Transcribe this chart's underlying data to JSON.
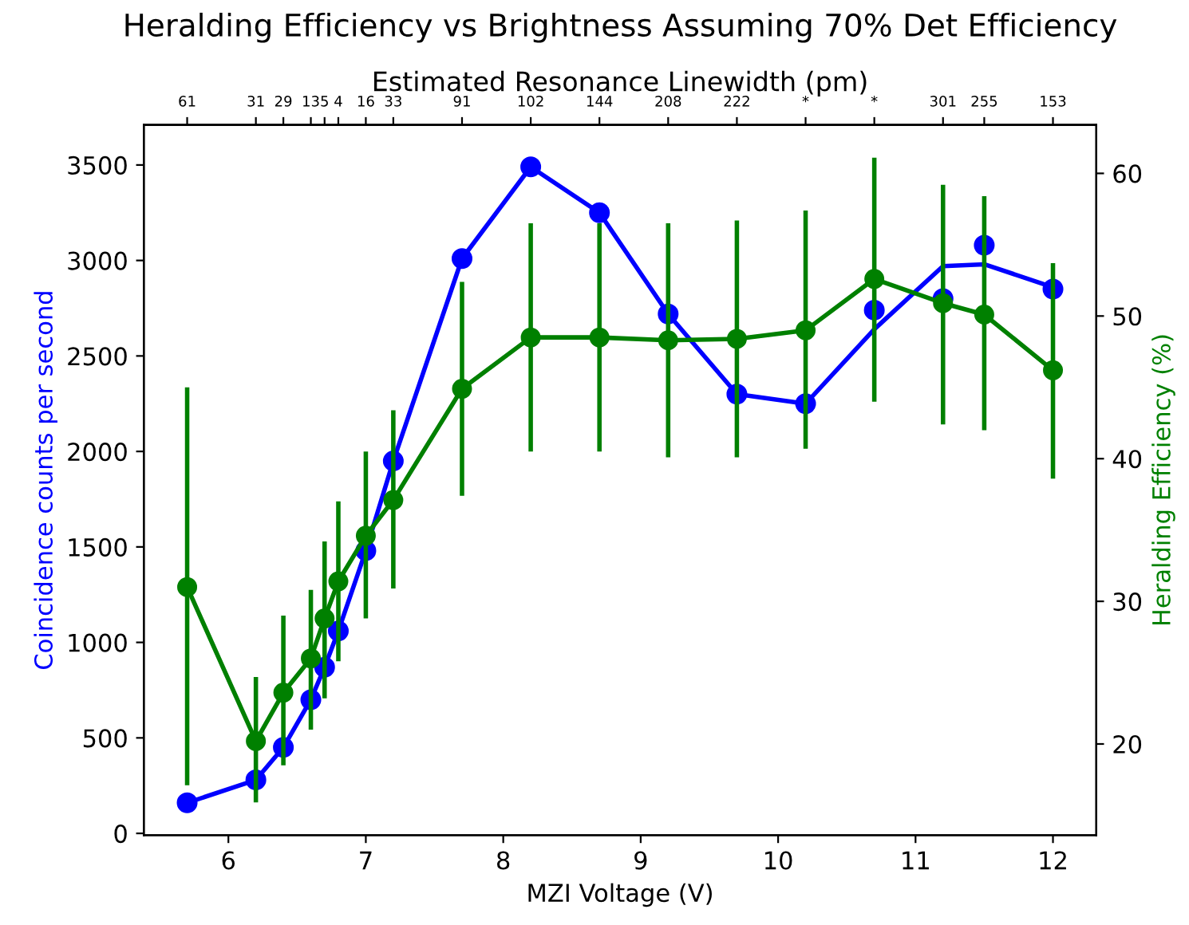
{
  "chart_data": {
    "type": "line",
    "title": "Heralding Efficiency vs Brightness Assuming 70% Det Efficiency",
    "xlabel": "MZI Voltage (V)",
    "ylabel": "Coincidence counts per second",
    "y2label": "Heralding Efficiency (%)",
    "x2label": "Estimated Resonance Linewidth (pm)",
    "x": [
      5.7,
      6.2,
      6.4,
      6.6,
      6.7,
      6.8,
      7.0,
      7.2,
      7.7,
      8.2,
      8.7,
      9.2,
      9.7,
      10.2,
      10.7,
      11.2,
      11.5,
      12.0
    ],
    "xlim": [
      5.385,
      12.315
    ],
    "xticks": [
      6,
      7,
      8,
      9,
      10,
      11,
      12
    ],
    "ylim": [
      -10,
      3710
    ],
    "yticks": [
      0,
      500,
      1000,
      1500,
      2000,
      2500,
      3000,
      3500
    ],
    "y2lim": [
      13.6,
      63.4
    ],
    "y2ticks": [
      20,
      30,
      40,
      50,
      60
    ],
    "annotations": [
      {
        "text": "61",
        "x": 5.7
      },
      {
        "text": "31",
        "x": 6.2
      },
      {
        "text": "29",
        "x": 6.4
      },
      {
        "text": "13",
        "x": 6.6
      },
      {
        "text": "5",
        "x": 6.7
      },
      {
        "text": "4",
        "x": 6.8
      },
      {
        "text": "16",
        "x": 7.0
      },
      {
        "text": "33",
        "x": 7.2
      },
      {
        "text": "91",
        "x": 7.7
      },
      {
        "text": "102",
        "x": 8.2
      },
      {
        "text": "144",
        "x": 8.7
      },
      {
        "text": "208",
        "x": 9.2
      },
      {
        "text": "222",
        "x": 9.7
      },
      {
        "text": "*",
        "x": 10.2
      },
      {
        "text": "*",
        "x": 10.7
      },
      {
        "text": "301",
        "x": 11.2
      },
      {
        "text": "255",
        "x": 11.5
      },
      {
        "text": "153",
        "x": 12.0
      }
    ],
    "grid": false,
    "legend": false,
    "series": [
      {
        "color": "#0000ff",
        "marker": "none",
        "values": [
          160,
          280,
          450,
          700,
          870,
          1060,
          1480,
          1950,
          3010,
          3490,
          3250,
          2720,
          2300,
          2250,
          2640,
          2970,
          2980,
          2860
        ]
      },
      {
        "type": "scatter",
        "color": "#0000ff",
        "marker": "circle",
        "values": [
          160,
          280,
          450,
          700,
          870,
          1060,
          1480,
          1950,
          3010,
          3490,
          3250,
          2720,
          2300,
          2250,
          2740,
          2800,
          3080,
          2850
        ]
      },
      {
        "color": "#008000",
        "marker": "circle",
        "axis": "y2",
        "values": [
          31,
          20.2,
          23.6,
          26,
          28.8,
          31.4,
          34.6,
          37.1,
          44.9,
          48.5,
          48.5,
          48.3,
          48.4,
          49,
          52.6,
          50.9,
          50.1,
          46.2
        ],
        "errors": [
          [
            17.1,
            45
          ],
          [
            15.9,
            24.7
          ],
          [
            18.5,
            29
          ],
          [
            21,
            30.8
          ],
          [
            23.2,
            34.2
          ],
          [
            25.8,
            37
          ],
          [
            28.8,
            40.5
          ],
          [
            30.9,
            43.4
          ],
          [
            37.4,
            52.4
          ],
          [
            40.5,
            56.5
          ],
          [
            40.5,
            56.5
          ],
          [
            40.1,
            56.5
          ],
          [
            40.1,
            56.7
          ],
          [
            40.7,
            57.4
          ],
          [
            44,
            61.1
          ],
          [
            42.4,
            59.2
          ],
          [
            42,
            58.4
          ],
          [
            38.6,
            53.7
          ]
        ]
      }
    ]
  }
}
